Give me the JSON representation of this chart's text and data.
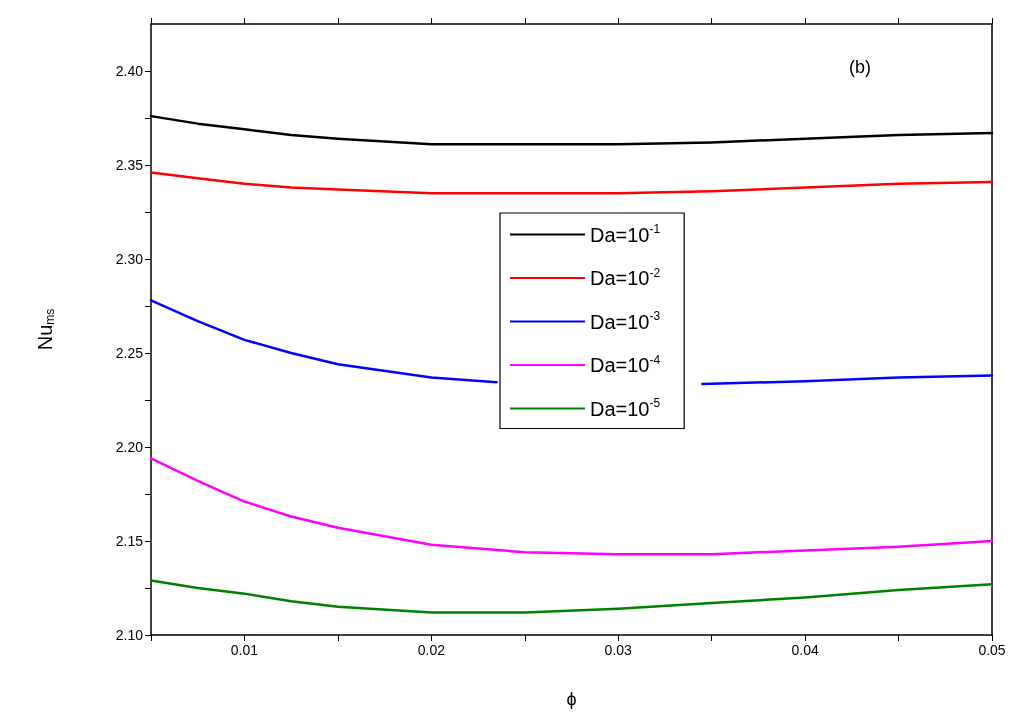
{
  "chart_data": {
    "type": "line",
    "xlabel": "ϕ",
    "ylabel": "Nu$_{ms}$",
    "annotations": [
      "(b)"
    ],
    "x": [
      0.005,
      0.0075,
      0.01,
      0.0125,
      0.015,
      0.02,
      0.025,
      0.03,
      0.035,
      0.04,
      0.045,
      0.05
    ],
    "series": [
      {
        "name": "Da=10$^{-1}$",
        "color": "#000000",
        "values": [
          2.376,
          2.372,
          2.369,
          2.366,
          2.364,
          2.361,
          2.361,
          2.361,
          2.362,
          2.364,
          2.366,
          2.367
        ]
      },
      {
        "name": "Da=10$^{-2}$",
        "color": "#ff0000",
        "values": [
          2.346,
          2.343,
          2.34,
          2.338,
          2.337,
          2.335,
          2.335,
          2.335,
          2.336,
          2.338,
          2.34,
          2.341
        ]
      },
      {
        "name": "Da=10$^{-3}$",
        "color": "#0000ff",
        "x": [
          0.005,
          0.0075,
          0.01,
          0.0125,
          0.015,
          0.02,
          0.0235,
          0.025,
          0.03,
          0.0345,
          0.04,
          0.045,
          0.05
        ],
        "values": [
          2.278,
          2.267,
          2.257,
          2.25,
          2.244,
          2.237,
          2.2345,
          null,
          null,
          2.2335,
          2.235,
          2.237,
          2.238
        ]
      },
      {
        "name": "Da=10$^{-4}$",
        "color": "#ff00ff",
        "values": [
          2.194,
          2.182,
          2.171,
          2.163,
          2.157,
          2.148,
          2.144,
          2.143,
          2.143,
          2.145,
          2.147,
          2.15
        ]
      },
      {
        "name": "Da=10$^{-5}$",
        "color": "#008000",
        "values": [
          2.129,
          2.125,
          2.122,
          2.118,
          2.115,
          2.112,
          2.112,
          2.114,
          2.117,
          2.12,
          2.124,
          2.127
        ]
      }
    ],
    "xlim": [
      0.005,
      0.05
    ],
    "xticks": [
      {
        "value": 0.005,
        "label": null
      },
      0.01,
      {
        "value": 0.015,
        "label": null
      },
      0.02,
      {
        "value": 0.025,
        "label": null
      },
      0.03,
      {
        "value": 0.035,
        "label": null
      },
      0.04,
      {
        "value": 0.045,
        "label": null
      },
      0.05
    ],
    "ylim": [
      2.1,
      2.425
    ],
    "yticks": [
      {
        "value": 2.1,
        "label": "2.10"
      },
      {
        "value": 2.125,
        "label": null
      },
      {
        "value": 2.15,
        "label": "2.15"
      },
      {
        "value": 2.175,
        "label": null
      },
      {
        "value": 2.2,
        "label": "2.20"
      },
      {
        "value": 2.225,
        "label": null
      },
      {
        "value": 2.25,
        "label": "2.25"
      },
      {
        "value": 2.275,
        "label": null
      },
      {
        "value": 2.3,
        "label": "2.30"
      },
      {
        "value": 2.325,
        "label": null
      },
      {
        "value": 2.35,
        "label": "2.35"
      },
      {
        "value": 2.375,
        "label": null
      },
      {
        "value": 2.4,
        "label": "2.40"
      }
    ],
    "grid": false,
    "legend": "center",
    "marker": "none",
    "line_style": "solid"
  }
}
